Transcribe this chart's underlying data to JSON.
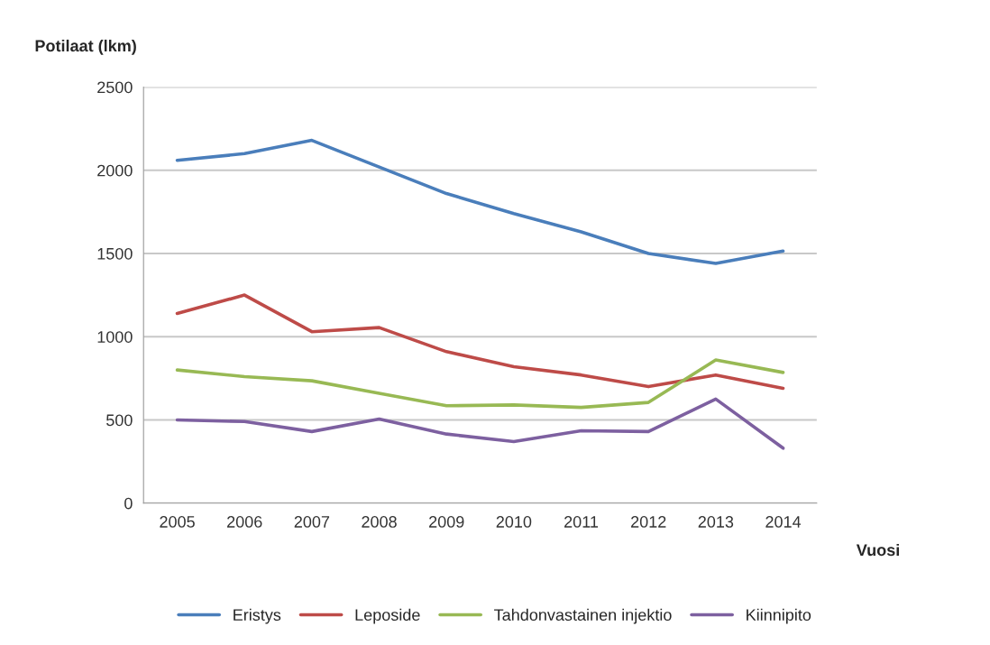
{
  "chart_data": {
    "type": "line",
    "xlabel": "Vuosi",
    "ylabel": "Potilaat (lkm)",
    "categories": [
      "2005",
      "2006",
      "2007",
      "2008",
      "2009",
      "2010",
      "2011",
      "2012",
      "2013",
      "2014"
    ],
    "series": [
      {
        "name": "Eristys",
        "color": "#4a7ebb",
        "values": [
          2060,
          2100,
          2180,
          2020,
          1860,
          1740,
          1630,
          1500,
          1440,
          1515
        ]
      },
      {
        "name": "Leposide",
        "color": "#be4b48",
        "values": [
          1140,
          1250,
          1030,
          1055,
          910,
          820,
          770,
          700,
          770,
          690
        ]
      },
      {
        "name": "Tahdonvastainen injektio",
        "color": "#98b954",
        "values": [
          800,
          760,
          735,
          660,
          585,
          590,
          575,
          605,
          860,
          785
        ]
      },
      {
        "name": "Kiinnipito",
        "color": "#7d60a0",
        "values": [
          500,
          490,
          430,
          505,
          415,
          370,
          435,
          430,
          625,
          330
        ]
      }
    ],
    "ylim": [
      0,
      2500
    ],
    "yticks": [
      0,
      500,
      1000,
      1500,
      2000,
      2500
    ],
    "grid": "y",
    "legend": "bottom",
    "marker": "none",
    "line_style": "solid"
  }
}
